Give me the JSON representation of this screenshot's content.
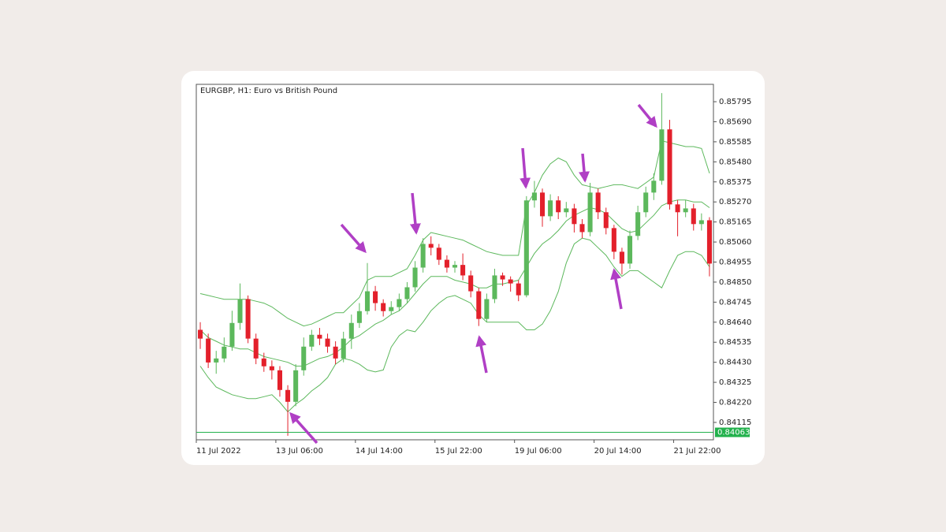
{
  "chart_data": {
    "type": "candlestick",
    "title": "EURGBP, H1:  Euro vs British Pound",
    "categories": [
      "11 Jul 2022",
      null,
      null,
      null,
      null,
      null,
      null,
      null,
      null,
      null,
      "13 Jul 06:00",
      null,
      null,
      null,
      null,
      null,
      null,
      null,
      null,
      null,
      "14 Jul 14:00",
      null,
      null,
      null,
      null,
      null,
      null,
      null,
      null,
      null,
      "15 Jul 22:00",
      null,
      null,
      null,
      null,
      null,
      null,
      null,
      null,
      null,
      "19 Jul 06:00",
      null,
      null,
      null,
      null,
      null,
      null,
      null,
      null,
      null,
      "20 Jul 14:00",
      null,
      null,
      null,
      null,
      null,
      null,
      null,
      null,
      null,
      "21 Jul 22:00",
      null,
      null,
      null,
      null
    ],
    "up_color": "#5cb85c",
    "down_color": "#e3202b",
    "open": [
      0.846,
      0.84554,
      0.84429,
      0.8445,
      0.84512,
      0.84636,
      0.84761,
      0.84554,
      0.8445,
      0.84409,
      0.84388,
      0.84285,
      0.84223,
      0.84388,
      0.84512,
      0.84574,
      0.84554,
      0.84512,
      0.8445,
      0.84554,
      0.84636,
      0.84698,
      0.84802,
      0.8474,
      0.84698,
      0.84719,
      0.84761,
      0.84823,
      0.84926,
      0.8505,
      0.8503,
      0.84967,
      0.84926,
      0.8494,
      0.84885,
      0.84802,
      0.84657,
      0.84761,
      0.84885,
      0.84864,
      0.84843,
      0.84781,
      0.85278,
      0.85319,
      0.85195,
      0.85278,
      0.85216,
      0.85236,
      0.85154,
      0.85112,
      0.85319,
      0.85216,
      0.85133,
      0.85009,
      0.84947,
      0.85092,
      0.85216,
      0.85319,
      0.85381,
      0.8565,
      0.85257,
      0.85216,
      0.85236,
      0.85154,
      0.85174
    ],
    "high": [
      0.8464,
      0.8458,
      0.8449,
      0.8456,
      0.847,
      0.84843,
      0.8478,
      0.8458,
      0.8448,
      0.8444,
      0.8441,
      0.8431,
      0.8442,
      0.8456,
      0.846,
      0.8461,
      0.8458,
      0.8454,
      0.8459,
      0.8468,
      0.8474,
      0.8495,
      0.8483,
      0.8476,
      0.8475,
      0.8479,
      0.8485,
      0.8496,
      0.8508,
      0.8509,
      0.8505,
      0.8499,
      0.8496,
      0.85,
      0.8491,
      0.8482,
      0.8479,
      0.8492,
      0.849,
      0.8488,
      0.8486,
      0.853,
      0.8538,
      0.8534,
      0.8531,
      0.853,
      0.8527,
      0.8526,
      0.8518,
      0.8537,
      0.8534,
      0.8524,
      0.8515,
      0.8503,
      0.8512,
      0.8525,
      0.8535,
      0.8542,
      0.8584,
      0.857,
      0.8528,
      0.8528,
      0.8526,
      0.8521,
      0.8519
    ],
    "low": [
      0.845,
      0.844,
      0.8437,
      0.8443,
      0.8449,
      0.846,
      0.8453,
      0.8442,
      0.8438,
      0.8434,
      0.8425,
      0.84045,
      0.842,
      0.8436,
      0.8449,
      0.8452,
      0.8448,
      0.8442,
      0.8443,
      0.845,
      0.8461,
      0.8468,
      0.847,
      0.8467,
      0.8468,
      0.847,
      0.8474,
      0.848,
      0.849,
      0.8499,
      0.8494,
      0.849,
      0.849,
      0.8486,
      0.8477,
      0.8462,
      0.8464,
      0.8474,
      0.8483,
      0.848,
      0.8475,
      0.8477,
      0.8524,
      0.8514,
      0.8517,
      0.8518,
      0.8519,
      0.8511,
      0.8508,
      0.8509,
      0.8518,
      0.851,
      0.8497,
      0.8489,
      0.8492,
      0.8507,
      0.8519,
      0.8528,
      0.8536,
      0.8523,
      0.8509,
      0.8519,
      0.8512,
      0.8512,
      0.8488
    ],
    "close": [
      0.84554,
      0.84429,
      0.8445,
      0.84512,
      0.84636,
      0.84761,
      0.84554,
      0.8445,
      0.84409,
      0.84388,
      0.84285,
      0.84223,
      0.84388,
      0.84512,
      0.84574,
      0.84554,
      0.84512,
      0.8445,
      0.84554,
      0.84636,
      0.84698,
      0.84802,
      0.8474,
      0.84698,
      0.84719,
      0.84761,
      0.84823,
      0.84926,
      0.8505,
      0.8503,
      0.84967,
      0.84926,
      0.8494,
      0.84885,
      0.84802,
      0.84657,
      0.84761,
      0.84885,
      0.84864,
      0.84843,
      0.84781,
      0.85278,
      0.85319,
      0.85195,
      0.85278,
      0.85216,
      0.85236,
      0.85154,
      0.85112,
      0.85319,
      0.85216,
      0.85133,
      0.85009,
      0.84947,
      0.85092,
      0.85216,
      0.85319,
      0.85381,
      0.8565,
      0.85257,
      0.85216,
      0.85236,
      0.85154,
      0.85174,
      0.84947
    ],
    "bands": [
      {
        "color": "#5cb85c",
        "values": [
          0.8479,
          0.8478,
          0.8477,
          0.8476,
          0.8476,
          0.8476,
          0.8476,
          0.8475,
          0.8474,
          0.8472,
          0.8469,
          0.8466,
          0.8464,
          0.8462,
          0.8463,
          0.8465,
          0.8467,
          0.8469,
          0.8469,
          0.8473,
          0.8477,
          0.8486,
          0.8488,
          0.8488,
          0.8488,
          0.849,
          0.8492,
          0.8499,
          0.8507,
          0.8511,
          0.851,
          0.8509,
          0.8508,
          0.8507,
          0.8505,
          0.8503,
          0.8501,
          0.85,
          0.8499,
          0.8499,
          0.8499,
          0.8525,
          0.8532,
          0.8541,
          0.8547,
          0.855,
          0.8548,
          0.8541,
          0.8536,
          0.8535,
          0.8534,
          0.8535,
          0.8536,
          0.8536,
          0.8535,
          0.8534,
          0.8537,
          0.854,
          0.8559,
          0.8558,
          0.8557,
          0.8556,
          0.8556,
          0.8555,
          0.8542
        ]
      },
      {
        "color": "#5cb85c",
        "values": [
          0.846,
          0.8456,
          0.8454,
          0.8452,
          0.8451,
          0.845,
          0.845,
          0.8448,
          0.8446,
          0.8445,
          0.8444,
          0.8443,
          0.8441,
          0.8441,
          0.8443,
          0.8445,
          0.8446,
          0.8448,
          0.8451,
          0.8455,
          0.8457,
          0.846,
          0.8463,
          0.8465,
          0.8468,
          0.847,
          0.8474,
          0.8479,
          0.8484,
          0.8488,
          0.8488,
          0.8488,
          0.8486,
          0.8485,
          0.8484,
          0.8482,
          0.8482,
          0.8484,
          0.8484,
          0.8485,
          0.8486,
          0.8493,
          0.85,
          0.8505,
          0.8508,
          0.8512,
          0.8517,
          0.852,
          0.8522,
          0.8524,
          0.8523,
          0.8521,
          0.8517,
          0.8513,
          0.8511,
          0.8512,
          0.8516,
          0.852,
          0.8525,
          0.8527,
          0.8528,
          0.8528,
          0.8527,
          0.8527,
          0.8524
        ]
      },
      {
        "color": "#5cb85c",
        "values": [
          0.8441,
          0.8435,
          0.843,
          0.8428,
          0.8426,
          0.8425,
          0.8424,
          0.8424,
          0.8425,
          0.8426,
          0.8422,
          0.8417,
          0.8421,
          0.8424,
          0.8428,
          0.8431,
          0.8435,
          0.8442,
          0.8445,
          0.8444,
          0.8442,
          0.8439,
          0.8438,
          0.8439,
          0.8451,
          0.8457,
          0.846,
          0.8459,
          0.8464,
          0.847,
          0.8474,
          0.8477,
          0.8478,
          0.8476,
          0.8474,
          0.8468,
          0.8464,
          0.8464,
          0.8464,
          0.8464,
          0.8464,
          0.846,
          0.846,
          0.8463,
          0.847,
          0.848,
          0.8495,
          0.8505,
          0.8508,
          0.8507,
          0.8503,
          0.8499,
          0.8493,
          0.8488,
          0.8491,
          0.8491,
          0.8488,
          0.8485,
          0.8482,
          0.8491,
          0.8499,
          0.8501,
          0.8501,
          0.8499,
          0.8493
        ]
      }
    ],
    "last_price": 0.84063,
    "last_price_color": "#22b14c",
    "ylim": [
      0.84024,
      0.85886
    ],
    "yticks": [
      0.85795,
      {
        "value": 0.8569,
        "label": "0.85690"
      },
      0.85585,
      {
        "value": 0.8548,
        "label": "0.85480"
      },
      0.85375,
      {
        "value": 0.8527,
        "label": "0.85270"
      },
      0.85165,
      {
        "value": 0.8506,
        "label": "0.85060"
      },
      0.84955,
      {
        "value": 0.8485,
        "label": "0.84850"
      },
      0.84745,
      {
        "value": 0.8464,
        "label": "0.84640"
      },
      0.84535,
      {
        "value": 0.8443,
        "label": "0.84430"
      },
      0.84325,
      {
        "value": 0.8422,
        "label": "0.84220"
      },
      0.84115
    ],
    "grid": false
  }
}
